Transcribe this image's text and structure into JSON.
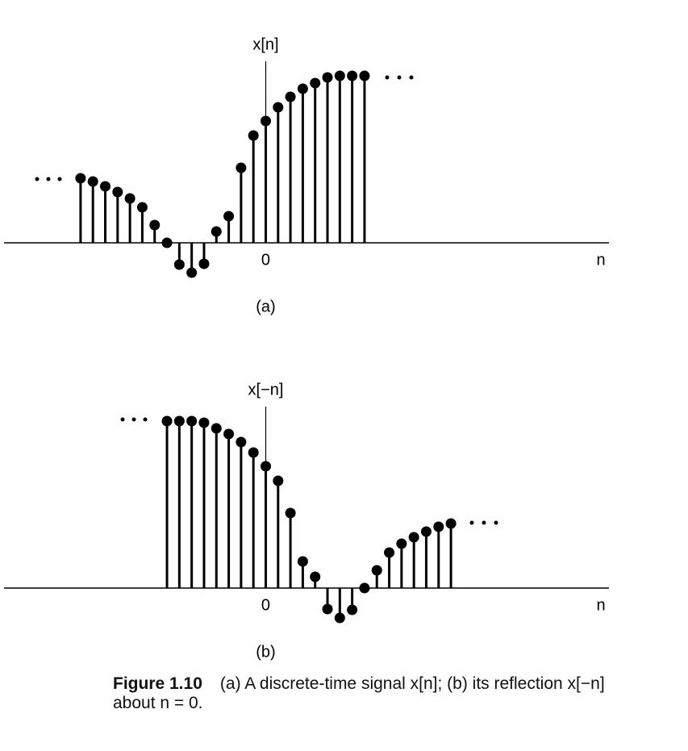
{
  "chart_data": [
    {
      "type": "stem",
      "y_label": "x[n]",
      "x_label": "n",
      "panel_label": "(a)",
      "x": [
        -15,
        -14,
        -13,
        -12,
        -11,
        -10,
        -9,
        -8,
        -7,
        -6,
        -5,
        -4,
        -3,
        -2,
        -1,
        0,
        1,
        2,
        3,
        4,
        5,
        6,
        7,
        8
      ],
      "values": [
        0.8,
        0.76,
        0.7,
        0.63,
        0.55,
        0.44,
        0.22,
        0,
        -0.27,
        -0.37,
        -0.26,
        0.14,
        0.33,
        0.93,
        1.33,
        1.51,
        1.68,
        1.81,
        1.91,
        1.98,
        2.05,
        2.07,
        2.07,
        2.07
      ],
      "color": "#000000",
      "xlim": [
        -21.2,
        27.8
      ],
      "ylim": [
        -0.6,
        2.6
      ],
      "xticks": [
        0
      ]
    },
    {
      "type": "stem",
      "y_label": "x[−n]",
      "x_label": "n",
      "panel_label": "(b)",
      "x": [
        -8,
        -7,
        -6,
        -5,
        -4,
        -3,
        -2,
        -1,
        0,
        1,
        2,
        3,
        4,
        5,
        6,
        7,
        8,
        9,
        10,
        11,
        12,
        13,
        14,
        15
      ],
      "values": [
        2.07,
        2.07,
        2.07,
        2.05,
        1.98,
        1.91,
        1.81,
        1.68,
        1.51,
        1.33,
        0.93,
        0.33,
        0.14,
        -0.26,
        -0.37,
        -0.27,
        0,
        0.22,
        0.44,
        0.55,
        0.63,
        0.7,
        0.76,
        0.8
      ],
      "color": "#000000",
      "xlim": [
        -21.2,
        27.8
      ],
      "ylim": [
        -0.6,
        2.6
      ],
      "xticks": [
        0
      ]
    }
  ],
  "caption": {
    "label": "Figure 1.10",
    "text": "(a) A discrete-time signal x[n]; (b) its reflection x[−n] about n = 0."
  }
}
